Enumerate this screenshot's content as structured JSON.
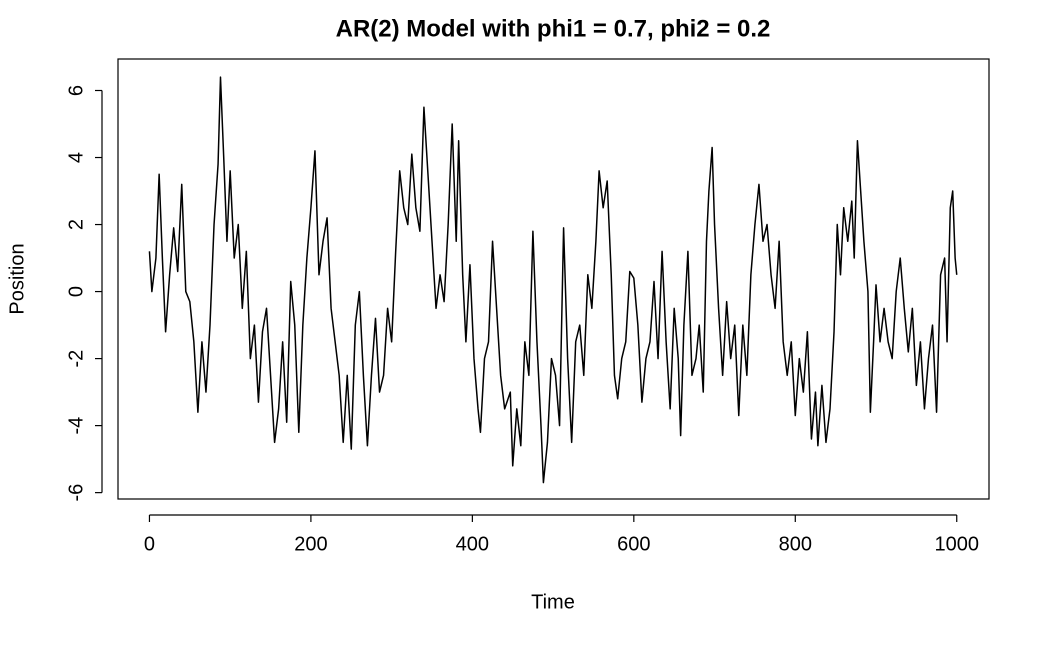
{
  "chart_data": {
    "type": "line",
    "title": "AR(2) Model with phi1 = 0.7, phi2 = 0.2",
    "xlabel": "Time",
    "ylabel": "Position",
    "color": "#000000",
    "xlim": [
      -38.96,
      1039.96
    ],
    "xticks": [
      0,
      200,
      400,
      600,
      800,
      1000
    ],
    "ylim": [
      -6.19,
      6.94
    ],
    "yticks": [
      -6,
      -4,
      -2,
      0,
      2,
      4,
      6
    ],
    "grid": false,
    "x": [
      0,
      3,
      8,
      12,
      16,
      20,
      25,
      30,
      35,
      40,
      45,
      50,
      55,
      60,
      65,
      70,
      75,
      80,
      85,
      88,
      92,
      96,
      100,
      105,
      110,
      115,
      120,
      125,
      130,
      135,
      140,
      145,
      150,
      155,
      160,
      165,
      170,
      175,
      180,
      185,
      190,
      195,
      200,
      205,
      210,
      215,
      220,
      225,
      230,
      235,
      240,
      245,
      250,
      255,
      260,
      265,
      270,
      275,
      280,
      285,
      290,
      295,
      300,
      305,
      310,
      315,
      320,
      325,
      330,
      335,
      340,
      345,
      350,
      355,
      360,
      365,
      370,
      375,
      380,
      383,
      388,
      392,
      397,
      402,
      407,
      410,
      415,
      420,
      425,
      430,
      435,
      440,
      447,
      450,
      455,
      460,
      465,
      470,
      475,
      480,
      485,
      488,
      493,
      498,
      503,
      508,
      513,
      518,
      523,
      528,
      533,
      538,
      543,
      548,
      553,
      557,
      562,
      567,
      572,
      576,
      580,
      585,
      590,
      595,
      600,
      605,
      610,
      615,
      620,
      625,
      630,
      635,
      640,
      645,
      650,
      655,
      658,
      662,
      667,
      672,
      677,
      681,
      686,
      690,
      693,
      697,
      700,
      705,
      710,
      715,
      720,
      725,
      730,
      735,
      740,
      745,
      750,
      755,
      760,
      765,
      770,
      775,
      780,
      785,
      790,
      795,
      800,
      805,
      810,
      815,
      820,
      825,
      828,
      833,
      838,
      843,
      848,
      852,
      856,
      860,
      865,
      870,
      873,
      877,
      881,
      885,
      890,
      893,
      897,
      900,
      905,
      910,
      915,
      920,
      925,
      930,
      935,
      940,
      945,
      950,
      955,
      960,
      965,
      970,
      975,
      980,
      985,
      988,
      992,
      995,
      998,
      1000
    ],
    "values": [
      1.2,
      0,
      1,
      3.5,
      1,
      -1.2,
      0.5,
      1.9,
      0.6,
      3.2,
      0,
      -0.3,
      -1.5,
      -3.6,
      -1.5,
      -3,
      -1,
      2,
      3.8,
      6.4,
      4,
      1.5,
      3.6,
      1,
      2,
      -0.5,
      1.2,
      -2,
      -1,
      -3.3,
      -1.2,
      -0.5,
      -2.5,
      -4.5,
      -3.5,
      -1.5,
      -3.9,
      0.3,
      -1,
      -4.2,
      -1,
      1,
      2.5,
      4.2,
      0.5,
      1.5,
      2.2,
      -0.5,
      -1.5,
      -2.5,
      -4.5,
      -2.5,
      -4.7,
      -1,
      0,
      -2.5,
      -4.6,
      -2.5,
      -0.8,
      -3,
      -2.5,
      -0.5,
      -1.5,
      1.2,
      3.6,
      2.5,
      2,
      4.1,
      2.5,
      1.8,
      5.5,
      3.5,
      1.5,
      -0.5,
      0.5,
      -0.3,
      2,
      5,
      1.5,
      4.5,
      0.5,
      -1.5,
      0.8,
      -2,
      -3.5,
      -4.2,
      -2,
      -1.5,
      1.5,
      -0.5,
      -2.5,
      -3.5,
      -3,
      -5.2,
      -3.5,
      -4.6,
      -1.5,
      -2.5,
      1.8,
      -1.5,
      -4,
      -5.7,
      -4.5,
      -2,
      -2.5,
      -4,
      1.9,
      -2,
      -4.5,
      -1.5,
      -1,
      -2.5,
      0.5,
      -0.5,
      1.5,
      3.6,
      2.5,
      3.3,
      0.5,
      -2.5,
      -3.2,
      -2,
      -1.5,
      0.6,
      0.4,
      -1,
      -3.3,
      -2,
      -1.5,
      0.3,
      -2,
      1.2,
      -1.5,
      -3.5,
      -0.5,
      -2,
      -4.3,
      -1,
      1.2,
      -2.5,
      -2,
      -1,
      -3,
      1.5,
      3,
      4.3,
      2,
      -0.5,
      -2.5,
      -0.3,
      -2,
      -1,
      -3.7,
      -1,
      -2.5,
      0.5,
      2,
      3.2,
      1.5,
      2,
      0.5,
      -0.5,
      1.5,
      -1.5,
      -2.5,
      -1.5,
      -3.7,
      -2,
      -3,
      -1.2,
      -4.4,
      -3,
      -4.6,
      -2.8,
      -4.5,
      -3.5,
      -1.2,
      2,
      0.5,
      2.5,
      1.5,
      2.7,
      1,
      4.5,
      3,
      1.5,
      0,
      -3.6,
      -1.5,
      0.2,
      -1.5,
      -0.5,
      -1.5,
      -2,
      0,
      1,
      -0.5,
      -1.8,
      -0.5,
      -2.8,
      -1.5,
      -3.5,
      -2,
      -1,
      -3.6,
      0.5,
      1,
      -1.5,
      2.5,
      3,
      1,
      0.5
    ]
  }
}
